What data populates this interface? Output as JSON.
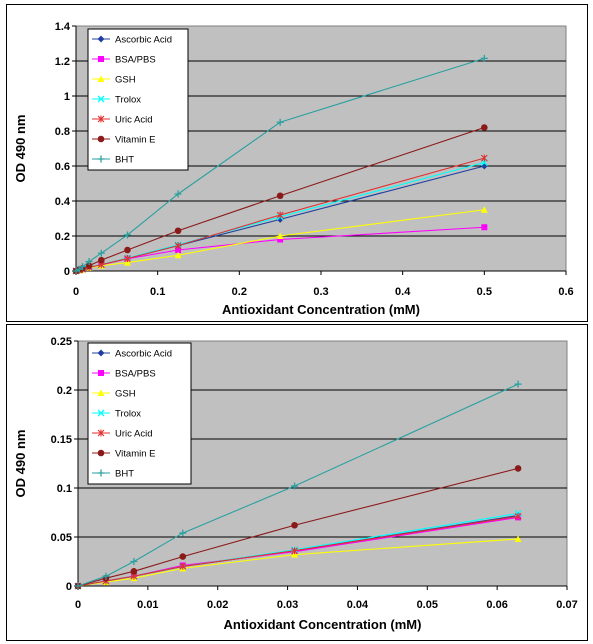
{
  "chart_data": [
    {
      "type": "line",
      "xlabel": "Antioxidant Concentration (mM)",
      "ylabel": "OD 490 nm",
      "xlim": [
        0,
        0.6
      ],
      "ylim": [
        0,
        1.4
      ],
      "x_ticks": [
        0,
        0.1,
        0.2,
        0.3,
        0.4,
        0.5,
        0.6
      ],
      "x_tick_labels": [
        "0",
        "0.1",
        "0.2",
        "0.3",
        "0.4",
        "0.5",
        "0.6"
      ],
      "y_ticks": [
        0,
        0.2,
        0.4,
        0.6,
        0.8,
        1.0,
        1.2,
        1.4
      ],
      "y_tick_labels": [
        "0",
        "0.2",
        "0.4",
        "0.6",
        "0.8",
        "1",
        "1.2",
        "1.4"
      ],
      "grid": "horizontal",
      "legend_position": "top-left",
      "x": [
        0,
        0.004,
        0.008,
        0.016,
        0.031,
        0.063,
        0.125,
        0.25,
        0.5
      ],
      "series": [
        {
          "name": "Ascorbic Acid",
          "color": "#1f3fa0",
          "marker": "diamond",
          "values": [
            0,
            0.005,
            0.01,
            0.02,
            0.036,
            0.072,
            0.145,
            0.295,
            0.6
          ]
        },
        {
          "name": "BSA/PBS",
          "color": "#ff00ff",
          "marker": "square",
          "values": [
            0,
            0.005,
            0.01,
            0.02,
            0.035,
            0.07,
            0.12,
            0.18,
            0.25
          ]
        },
        {
          "name": "GSH",
          "color": "#ffff00",
          "marker": "triangle",
          "values": [
            0,
            0.004,
            0.008,
            0.018,
            0.03,
            0.048,
            0.09,
            0.2,
            0.35
          ]
        },
        {
          "name": "Trolox",
          "color": "#00ffff",
          "marker": "x",
          "values": [
            0,
            0.005,
            0.01,
            0.02,
            0.037,
            0.074,
            0.15,
            0.31,
            0.62
          ]
        },
        {
          "name": "Uric Acid",
          "color": "#e03030",
          "marker": "star",
          "values": [
            0,
            0.005,
            0.01,
            0.02,
            0.036,
            0.071,
            0.145,
            0.32,
            0.645
          ]
        },
        {
          "name": "Vitamin E",
          "color": "#8b1a1a",
          "marker": "circle",
          "values": [
            0,
            0.008,
            0.015,
            0.03,
            0.062,
            0.12,
            0.23,
            0.43,
            0.82
          ]
        },
        {
          "name": "BHT",
          "color": "#2aa0a0",
          "marker": "plus",
          "values": [
            0,
            0.01,
            0.025,
            0.054,
            0.102,
            0.206,
            0.44,
            0.85,
            1.215
          ]
        }
      ]
    },
    {
      "type": "line",
      "xlabel": "Antioxidant Concentration (mM)",
      "ylabel": "OD 490 nm",
      "xlim": [
        0,
        0.07
      ],
      "ylim": [
        0,
        0.25
      ],
      "x_ticks": [
        0,
        0.01,
        0.02,
        0.03,
        0.04,
        0.05,
        0.06,
        0.07
      ],
      "x_tick_labels": [
        "0",
        "0.01",
        "0.02",
        "0.03",
        "0.04",
        "0.05",
        "0.06",
        "0.07"
      ],
      "y_ticks": [
        0,
        0.05,
        0.1,
        0.15,
        0.2,
        0.25
      ],
      "y_tick_labels": [
        "0",
        "0.05",
        "0.1",
        "0.15",
        "0.2",
        "0.25"
      ],
      "grid": "horizontal",
      "legend_position": "top-left",
      "x": [
        0,
        0.004,
        0.008,
        0.015,
        0.031,
        0.063
      ],
      "series": [
        {
          "name": "Ascorbic Acid",
          "color": "#1f3fa0",
          "marker": "diamond",
          "values": [
            0,
            0.005,
            0.01,
            0.02,
            0.036,
            0.072
          ]
        },
        {
          "name": "BSA/PBS",
          "color": "#ff00ff",
          "marker": "square",
          "values": [
            0,
            0.005,
            0.01,
            0.021,
            0.035,
            0.07
          ]
        },
        {
          "name": "GSH",
          "color": "#ffff00",
          "marker": "triangle",
          "values": [
            0,
            0.004,
            0.008,
            0.018,
            0.032,
            0.048
          ]
        },
        {
          "name": "Trolox",
          "color": "#00ffff",
          "marker": "x",
          "values": [
            0,
            0.005,
            0.01,
            0.02,
            0.037,
            0.074
          ]
        },
        {
          "name": "Uric Acid",
          "color": "#e03030",
          "marker": "star",
          "values": [
            0,
            0.005,
            0.01,
            0.02,
            0.036,
            0.071
          ]
        },
        {
          "name": "Vitamin E",
          "color": "#8b1a1a",
          "marker": "circle",
          "values": [
            0,
            0.008,
            0.015,
            0.03,
            0.062,
            0.12
          ]
        },
        {
          "name": "BHT",
          "color": "#2aa0a0",
          "marker": "plus",
          "values": [
            0,
            0.01,
            0.025,
            0.054,
            0.102,
            0.206
          ]
        }
      ]
    }
  ]
}
